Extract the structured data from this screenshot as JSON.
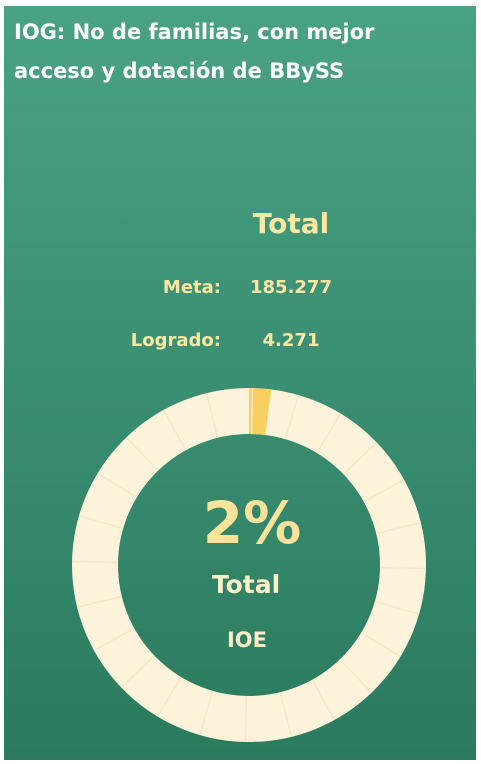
{
  "chart_data": {
    "type": "gauge",
    "title": [
      "IOG: No de familias, con mejor",
      "acceso y dotación de BBySS"
    ],
    "subtitle": "Total",
    "stats": [
      {
        "label": "Meta:",
        "value": 185277,
        "value_label": "185.277"
      },
      {
        "label": "Logrado:",
        "value": 4271,
        "value_label": "4.271"
      }
    ],
    "values": [
      2
    ],
    "value_labels": [
      "2%"
    ],
    "max": 100,
    "center_labels": [
      "Total",
      "IOE"
    ],
    "color": "#f8d060",
    "track_color": "#fdf3da"
  }
}
